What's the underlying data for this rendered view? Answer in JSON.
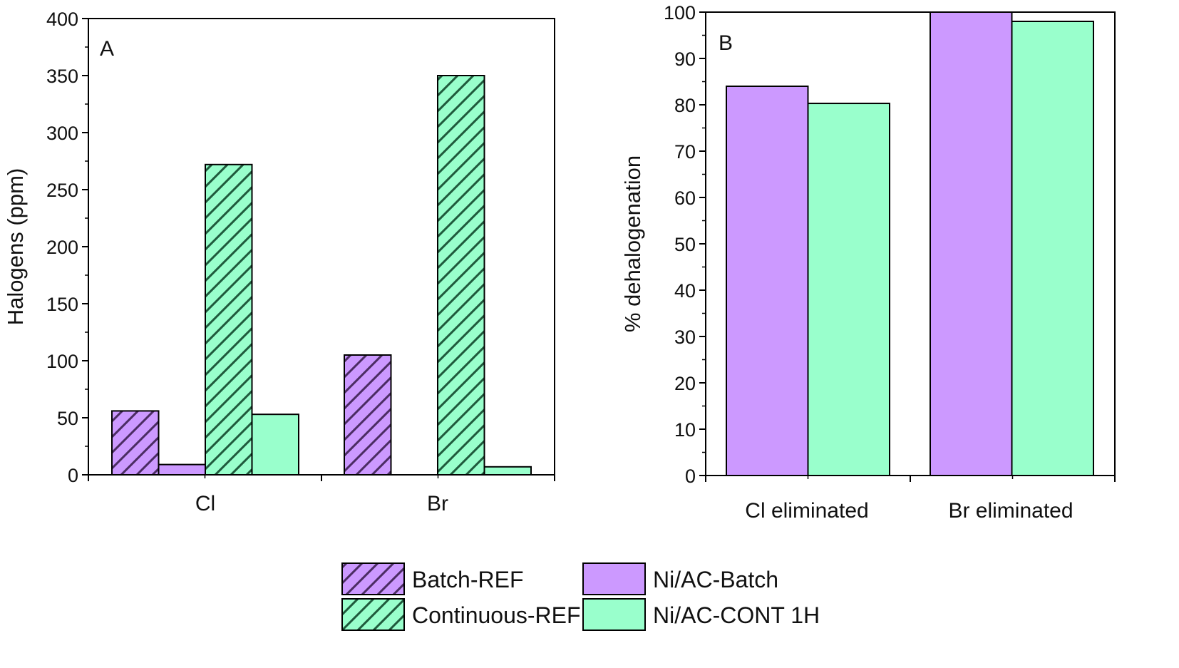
{
  "legend": [
    {
      "label": "Batch-REF",
      "color": "#cc99ff",
      "hatched": true
    },
    {
      "label": "Ni/AC-Batch",
      "color": "#cc99ff",
      "hatched": false
    },
    {
      "label": "Continuous-REF",
      "color": "#99ffcc",
      "hatched": true
    },
    {
      "label": "Ni/AC-CONT 1H",
      "color": "#99ffcc",
      "hatched": false
    }
  ],
  "colors": {
    "purple": "#cc99ff",
    "green": "#99ffcc",
    "purple_hatch": "#4b2c63",
    "green_hatch": "#1f5a3c"
  },
  "chart_data": [
    {
      "type": "bar",
      "panel_label": "A",
      "categories": [
        "Cl",
        "Br"
      ],
      "ylabel": "Halogens (ppm)",
      "xlabel": "",
      "ylim": [
        0,
        400
      ],
      "yticks": [
        0,
        50,
        100,
        150,
        200,
        250,
        300,
        350,
        400
      ],
      "series": [
        {
          "name": "Batch-REF",
          "values": [
            56,
            105
          ],
          "color": "#cc99ff",
          "hatched": true
        },
        {
          "name": "Ni/AC-Batch",
          "values": [
            9,
            0
          ],
          "color": "#cc99ff",
          "hatched": false
        },
        {
          "name": "Continuous-REF",
          "values": [
            272,
            350
          ],
          "color": "#99ffcc",
          "hatched": true
        },
        {
          "name": "Ni/AC-CONT 1H",
          "values": [
            53,
            7
          ],
          "color": "#99ffcc",
          "hatched": false
        }
      ]
    },
    {
      "type": "bar",
      "panel_label": "B",
      "categories": [
        "Cl eliminated",
        "Br eliminated"
      ],
      "ylabel": "% dehalogenation",
      "xlabel": "",
      "ylim": [
        0,
        100
      ],
      "yticks": [
        0,
        10,
        20,
        30,
        40,
        50,
        60,
        70,
        80,
        90,
        100
      ],
      "series": [
        {
          "name": "Ni/AC-Batch",
          "values": [
            84,
            100
          ],
          "color": "#cc99ff",
          "hatched": false
        },
        {
          "name": "Ni/AC-CONT 1H",
          "values": [
            80.3,
            98
          ],
          "color": "#99ffcc",
          "hatched": false
        }
      ]
    }
  ]
}
